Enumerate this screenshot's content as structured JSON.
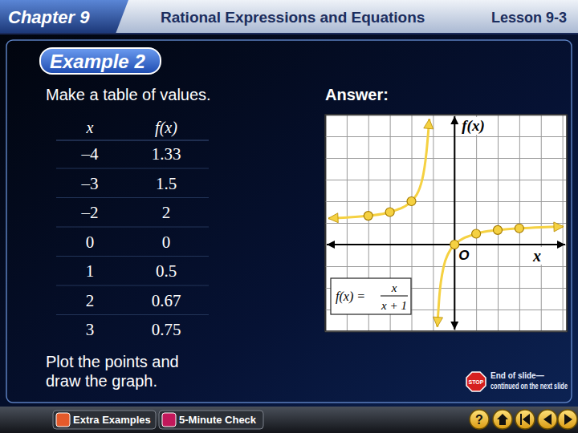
{
  "header": {
    "chapter": "Chapter 9",
    "title": "Rational Expressions and Equations",
    "lesson": "Lesson 9-3"
  },
  "example": "Example 2",
  "instruction": "Make a table of values.",
  "answer_label": "Answer:",
  "table": {
    "columns": [
      "x",
      "f(x)"
    ],
    "rows": [
      [
        "–4",
        "1.33"
      ],
      [
        "–3",
        "1.5"
      ],
      [
        "–2",
        "2"
      ],
      [
        "0",
        "0"
      ],
      [
        "1",
        "0.5"
      ],
      [
        "2",
        "0.67"
      ],
      [
        "3",
        "0.75"
      ]
    ]
  },
  "step": [
    "Plot the points and",
    "draw the graph."
  ],
  "end_note": {
    "icon": "STOP",
    "lines": [
      "End of slide—",
      "continued on the next slide"
    ]
  },
  "footer": {
    "buttons": [
      "Extra Examples",
      "5-Minute Check"
    ],
    "help": "?"
  },
  "chart_data": {
    "type": "line",
    "x_label": "x",
    "y_label": "f(x)",
    "origin_label": "O",
    "annotation": {
      "lhs": "f(x) =",
      "numerator": "x",
      "denominator": "x + 1"
    },
    "xlim": [
      -6,
      5.2
    ],
    "ylim": [
      -4,
      6
    ],
    "xticks": [
      -6,
      -5,
      -4,
      -3,
      -2,
      -1,
      0,
      1,
      2,
      3,
      4,
      5
    ],
    "yticks": [
      -4,
      -3,
      -2,
      -1,
      0,
      1,
      2,
      3,
      4,
      5,
      6
    ],
    "grid": true,
    "tick_labels": false,
    "series": [
      {
        "type": "scatter",
        "marker": "circle",
        "color": "#f5d142",
        "x": [
          -4,
          -3,
          -2,
          0,
          1,
          2,
          3
        ],
        "values": [
          1.33,
          1.5,
          2,
          0,
          0.5,
          0.67,
          0.75
        ]
      },
      {
        "type": "line",
        "line_style": "solid",
        "color": "#f5d142",
        "x": [
          -5.85,
          -5,
          -4,
          -3,
          -2,
          -1.5,
          -1.3,
          -1.17,
          null,
          -0.8,
          -0.7,
          -0.5,
          -0.3,
          0,
          1,
          2,
          3,
          4,
          5.05
        ],
        "values": [
          1.21,
          1.25,
          1.33,
          1.5,
          2,
          3,
          4.3,
          5.8,
          null,
          -3.8,
          -2.33,
          -1,
          -0.43,
          0,
          0.5,
          0.67,
          0.75,
          0.8,
          0.83
        ]
      }
    ]
  }
}
